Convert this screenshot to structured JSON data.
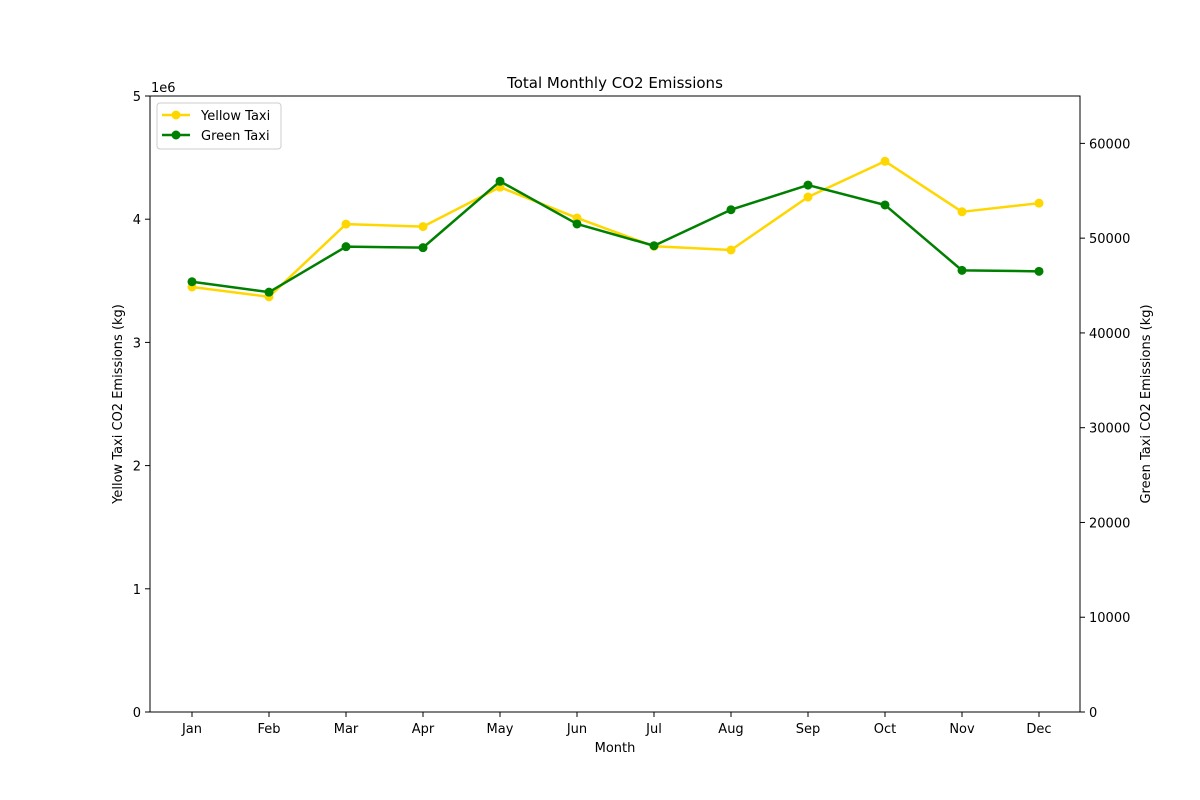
{
  "chart_data": {
    "type": "line",
    "title": "Total Monthly CO2 Emissions",
    "xlabel": "Month",
    "ylabel_left": "Yellow Taxi CO2 Emissions (kg)",
    "ylabel_right": "Green Taxi CO2 Emissions (kg)",
    "left_axis_offset_label": "1e6",
    "left_ylim": [
      0,
      5000000
    ],
    "right_ylim": [
      0,
      65000
    ],
    "left_ticks": [
      0,
      1000000,
      2000000,
      3000000,
      4000000,
      5000000
    ],
    "left_tick_labels": [
      "0",
      "1",
      "2",
      "3",
      "4",
      "5"
    ],
    "right_ticks": [
      0,
      10000,
      20000,
      30000,
      40000,
      50000,
      60000
    ],
    "right_tick_labels": [
      "0",
      "10000",
      "20000",
      "30000",
      "40000",
      "50000",
      "60000"
    ],
    "categories": [
      "Jan",
      "Feb",
      "Mar",
      "Apr",
      "May",
      "Jun",
      "Jul",
      "Aug",
      "Sep",
      "Oct",
      "Nov",
      "Dec"
    ],
    "grid": false,
    "legend_position": "top-left",
    "series": [
      {
        "name": "Yellow Taxi",
        "axis": "left",
        "color": "#ffd700",
        "values": [
          3450000,
          3370000,
          3960000,
          3940000,
          4260000,
          4010000,
          3780000,
          3750000,
          4180000,
          4470000,
          4060000,
          4130000
        ]
      },
      {
        "name": "Green Taxi",
        "axis": "right",
        "color": "#008000",
        "values": [
          45400,
          44300,
          49100,
          49000,
          56000,
          51500,
          49200,
          53000,
          55600,
          53500,
          46600,
          46500
        ]
      }
    ]
  }
}
